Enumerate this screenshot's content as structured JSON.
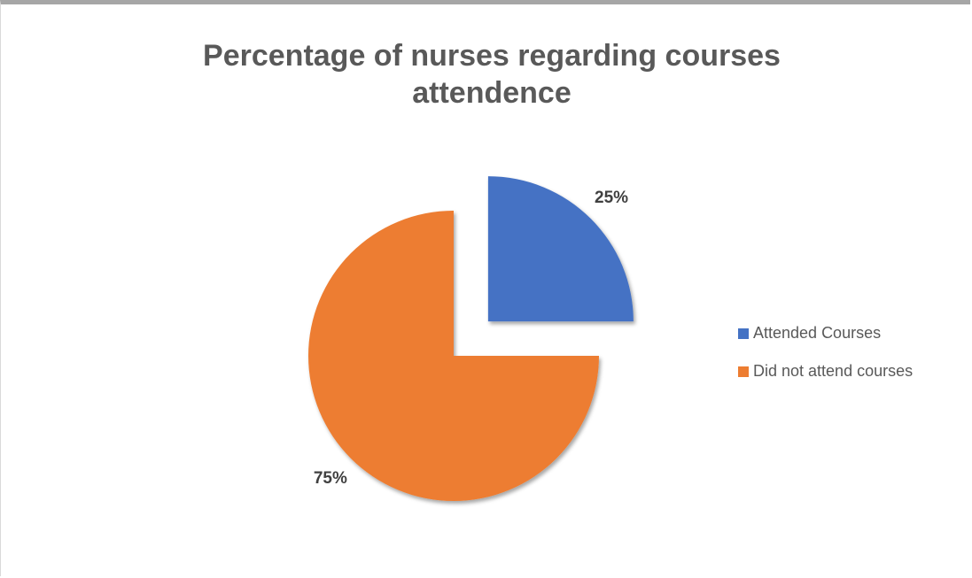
{
  "chart_data": {
    "type": "pie",
    "title": "Percentage of nurses regarding courses attendence",
    "categories": [
      "Attended Courses",
      "Did not attend courses"
    ],
    "values": [
      25,
      75
    ],
    "value_labels": [
      "25%",
      "75%"
    ],
    "colors": [
      "#4472c4",
      "#ed7d31"
    ],
    "legend": "right"
  }
}
